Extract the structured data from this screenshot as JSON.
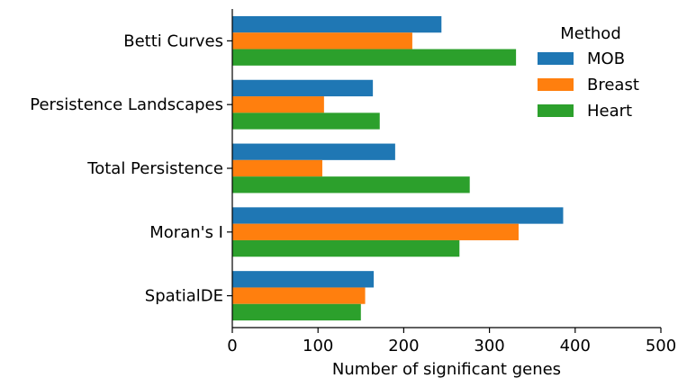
{
  "chart_data": {
    "type": "bar",
    "orientation": "horizontal",
    "title": "",
    "xlabel": "Number of significant genes",
    "ylabel": "",
    "xlim": [
      0,
      500
    ],
    "xticks": [
      0,
      100,
      200,
      300,
      400,
      500
    ],
    "categories": [
      "Betti Curves",
      "Persistence Landscapes",
      "Total Persistence",
      "Moran's I",
      "SpatialDE"
    ],
    "series": [
      {
        "name": "MOB",
        "color": "#1f77b4",
        "values": [
          244,
          164,
          190,
          386,
          165
        ]
      },
      {
        "name": "Breast",
        "color": "#ff7f0e",
        "values": [
          210,
          107,
          105,
          334,
          155
        ]
      },
      {
        "name": "Heart",
        "color": "#2ca02c",
        "values": [
          331,
          172,
          277,
          265,
          150
        ]
      }
    ],
    "legend": {
      "title": "Method",
      "placement": "top-right"
    },
    "grid": false
  }
}
